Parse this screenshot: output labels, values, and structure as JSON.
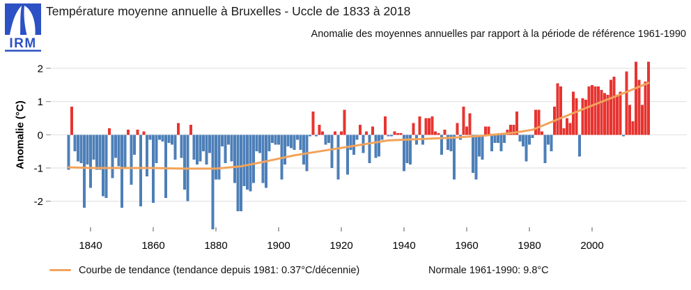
{
  "logo": {
    "text": "IRM",
    "color": "#2b51c4"
  },
  "title": "Température moyenne annuelle à Bruxelles - Uccle de 1833 à 2018",
  "subtitle": "Anomalie des moyennes annuelles par rapport à la période de référence 1961-1990",
  "legend": {
    "trend_label": "Courbe de tendance (tendance depuis 1981: 0.37°C/décennie)",
    "normal_label": "Normale 1961-1990: 9.8°C"
  },
  "chart_data": {
    "type": "bar",
    "title": "Température moyenne annuelle à Bruxelles - Uccle de 1833 à 2018",
    "subtitle": "Anomalie des moyennes annuelles par rapport à la période de référence 1961-1990",
    "xlabel": "",
    "ylabel": "Anomalie (°C)",
    "x_start": 1833,
    "x_end": 2018,
    "ylim": [
      -2.9,
      2.3
    ],
    "yticks": [
      2,
      1,
      0,
      -1,
      -2
    ],
    "xticks": [
      1840,
      1860,
      1880,
      1900,
      1920,
      1940,
      1960,
      1980,
      2000
    ],
    "grid": true,
    "bar_colors": {
      "positive": "#e73430",
      "negative": "#4d7fb8"
    },
    "values": [
      -1.05,
      0.85,
      -0.5,
      -0.8,
      -0.85,
      -2.2,
      -0.9,
      -1.6,
      -0.75,
      -1.05,
      -1.05,
      -1.85,
      -1.9,
      0.2,
      -1.3,
      -0.7,
      -0.95,
      -2.2,
      -1.0,
      0.15,
      -1.5,
      -0.6,
      0.15,
      -2.15,
      0.1,
      -1.25,
      -0.15,
      -2.05,
      -0.85,
      -0.15,
      -0.2,
      -1.9,
      -0.25,
      -0.3,
      -0.75,
      0.35,
      -0.7,
      -1.65,
      -2.0,
      0.3,
      -0.75,
      -0.9,
      -0.8,
      -0.5,
      -0.9,
      -0.55,
      -2.85,
      -1.35,
      -1.35,
      -0.35,
      -0.85,
      -0.3,
      -0.8,
      -1.45,
      -2.3,
      -2.3,
      -1.55,
      -1.65,
      -1.7,
      -1.45,
      -0.5,
      -0.55,
      -1.45,
      -1.6,
      -0.5,
      -0.25,
      -0.3,
      -0.3,
      -1.35,
      -0.9,
      -0.35,
      -0.4,
      -0.45,
      -0.15,
      -0.45,
      -0.9,
      -1.1,
      -0.05,
      0.7,
      -0.05,
      0.3,
      0.1,
      -0.3,
      -0.25,
      -1.0,
      0.1,
      -1.35,
      0.1,
      0.75,
      -1.2,
      -0.45,
      -0.6,
      -0.15,
      0.3,
      -0.55,
      0.1,
      -0.85,
      0.25,
      -0.7,
      -0.65,
      -0.15,
      0.55,
      -0.05,
      -0.05,
      0.1,
      0.05,
      0.05,
      -1.1,
      -0.85,
      -0.9,
      0.35,
      -0.3,
      0.55,
      -0.3,
      0.5,
      0.5,
      0.55,
      0.1,
      0.05,
      -0.6,
      0.15,
      -0.45,
      -0.5,
      -1.35,
      0.35,
      -0.15,
      0.85,
      0.25,
      0.65,
      -1.15,
      -1.35,
      -0.65,
      -0.75,
      0.25,
      0.25,
      -0.5,
      -0.25,
      -0.25,
      -0.5,
      -0.25,
      0.15,
      0.3,
      0.3,
      0.7,
      -0.2,
      -0.35,
      -0.8,
      -0.3,
      -0.1,
      0.75,
      0.75,
      0.1,
      -0.85,
      -0.3,
      -0.5,
      0.85,
      1.55,
      1.45,
      0.2,
      0.5,
      0.35,
      1.3,
      1.1,
      -0.65,
      1.1,
      1.05,
      1.45,
      1.5,
      1.45,
      1.45,
      1.35,
      1.25,
      1.2,
      1.65,
      1.75,
      1.2,
      1.3,
      -0.05,
      1.9,
      0.9,
      0.4,
      2.2,
      1.65,
      0.9,
      1.6,
      2.2
    ],
    "trend": {
      "name": "Courbe de tendance",
      "slope_since_1981": "0.37°C/décennie",
      "color": "#f2a35c",
      "points": [
        [
          1833,
          -0.98
        ],
        [
          1840,
          -1.0
        ],
        [
          1850,
          -1.0
        ],
        [
          1860,
          -1.0
        ],
        [
          1870,
          -1.02
        ],
        [
          1880,
          -1.02
        ],
        [
          1888,
          -0.95
        ],
        [
          1895,
          -0.82
        ],
        [
          1905,
          -0.62
        ],
        [
          1915,
          -0.47
        ],
        [
          1925,
          -0.32
        ],
        [
          1935,
          -0.17
        ],
        [
          1945,
          -0.13
        ],
        [
          1955,
          -0.09
        ],
        [
          1965,
          -0.03
        ],
        [
          1975,
          0.06
        ],
        [
          1981,
          0.15
        ],
        [
          1990,
          0.5
        ],
        [
          2000,
          0.88
        ],
        [
          2010,
          1.25
        ],
        [
          2018,
          1.56
        ]
      ]
    },
    "normal_reference": "9.8°C",
    "reference_period": "1961-1990"
  },
  "colors": {
    "positive_bar": "#e73430",
    "negative_bar": "#4d7fb8",
    "trend": "#f2a35c",
    "gridline": "#e3e3e3",
    "logo_blue": "#2b51c4"
  }
}
